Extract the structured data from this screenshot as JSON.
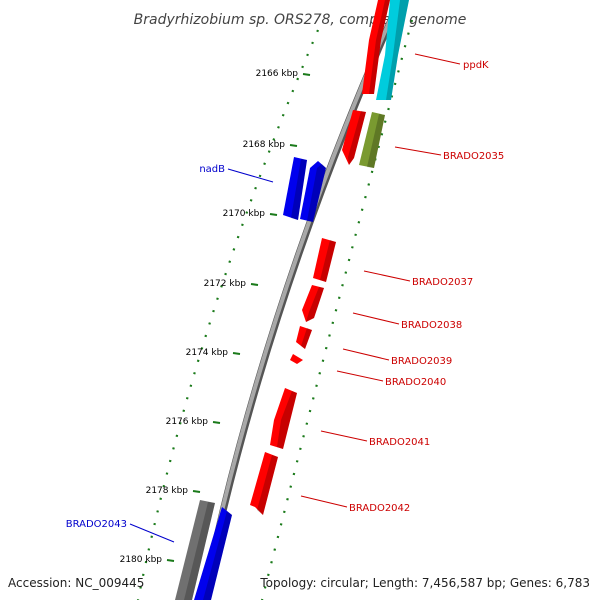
{
  "title": "Bradyrhizobium sp. ORS278, complete genome",
  "footer": {
    "accession": "Accession: NC_009445",
    "topology": "Topology: circular; Length: 7,456,587 bp; Genes: 6,783"
  },
  "colors": {
    "tick": "#1a7a1a",
    "backbone": "#808080",
    "label_red": "#cc0000",
    "label_blue": "#0000cc"
  },
  "ticks": [
    {
      "kbp": 2166,
      "label": "2166 kbp"
    },
    {
      "kbp": 2168,
      "label": "2168 kbp"
    },
    {
      "kbp": 2170,
      "label": "2170 kbp"
    },
    {
      "kbp": 2172,
      "label": "2172 kbp"
    },
    {
      "kbp": 2174,
      "label": "2174 kbp"
    },
    {
      "kbp": 2176,
      "label": "2176 kbp"
    },
    {
      "kbp": 2178,
      "label": "2178 kbp"
    },
    {
      "kbp": 2180,
      "label": "2180 kbp"
    }
  ],
  "genes": [
    {
      "name": "ppdK",
      "strand": "outer",
      "color": "#00ccdd",
      "type": "rna-like"
    },
    {
      "name": "BRADO2035",
      "strand": "outer",
      "color": "#7a9a30"
    },
    {
      "name": "nadB",
      "strand": "inner",
      "color": "#0000ee"
    },
    {
      "name": "BRADO2037",
      "strand": "outer",
      "color": "#ff0000"
    },
    {
      "name": "BRADO2038",
      "strand": "outer",
      "color": "#ff0000"
    },
    {
      "name": "BRADO2039",
      "strand": "outer",
      "color": "#ff0000"
    },
    {
      "name": "BRADO2040",
      "strand": "outer",
      "color": "#ff0000"
    },
    {
      "name": "BRADO2041",
      "strand": "outer",
      "color": "#ff0000"
    },
    {
      "name": "BRADO2042",
      "strand": "outer",
      "color": "#ff0000"
    },
    {
      "name": "BRADO2043",
      "strand": "inner",
      "color": "#0000ee"
    }
  ]
}
